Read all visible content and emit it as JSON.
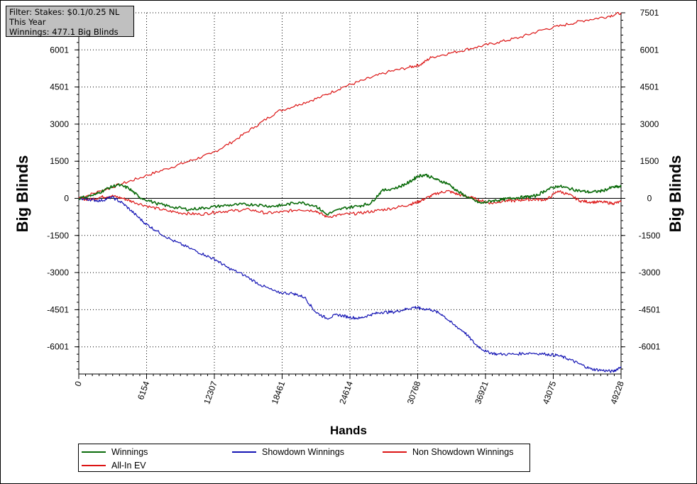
{
  "filter": {
    "line1": "Filter: Stakes: $0.1/0.25 NL",
    "line2": "This Year",
    "line3": "Winnings: 477.1 Big Blinds"
  },
  "colors": {
    "winnings": "#0a6b0a",
    "showdown": "#1414b4",
    "non_showdown": "#dc1414",
    "allin_ev": "#dc1414",
    "zero_line": "#000000",
    "grid": "#000000"
  },
  "legend": {
    "winnings": "Winnings",
    "showdown": "Showdown Winnings",
    "non_showdown": "Non Showdown Winnings",
    "allin_ev": "All-In EV"
  },
  "chart_data": {
    "type": "line",
    "xlabel": "Hands",
    "ylabel_left": "Big Blinds",
    "ylabel_right": "Big Blinds",
    "xlim": [
      0,
      49228
    ],
    "ylim": [
      -7100,
      7501
    ],
    "x_ticks": [
      "0",
      "6154",
      "12307",
      "18461",
      "24614",
      "30768",
      "36921",
      "43075",
      "49228"
    ],
    "x_tick_values": [
      0,
      6154,
      12307,
      18461,
      24614,
      30768,
      36921,
      43075,
      49228
    ],
    "y_ticks_left": [
      "6001",
      "4501",
      "3000",
      "1500",
      "0",
      "-1500",
      "-3000",
      "-4501",
      "-6001"
    ],
    "y_ticks_right": [
      "7501",
      "6001",
      "4501",
      "3000",
      "1500",
      "0",
      "-1500",
      "-3000",
      "-4501",
      "-6001"
    ],
    "y_tick_values_left": [
      6001,
      4501,
      3000,
      1500,
      0,
      -1500,
      -3000,
      -4501,
      -6001
    ],
    "y_tick_values_right": [
      7501,
      6001,
      4501,
      3000,
      1500,
      0,
      -1500,
      -3000,
      -4501,
      -6001
    ],
    "grid": true,
    "legend_position": "bottom",
    "series": [
      {
        "name": "Winnings",
        "color_key": "winnings",
        "x": [
          0,
          1500,
          2500,
          3500,
          4500,
          5500,
          7000,
          8500,
          10000,
          11500,
          13000,
          14500,
          16000,
          17500,
          18500,
          20000,
          21500,
          22500,
          24000,
          25500,
          26500,
          27500,
          29000,
          30000,
          30768,
          31500,
          32500,
          33500,
          34500,
          35500,
          36500,
          37500,
          38500,
          39500,
          40500,
          41500,
          42500,
          43500,
          44500,
          45500,
          46500,
          47500,
          48500,
          49228
        ],
        "y": [
          0,
          150,
          380,
          550,
          420,
          50,
          -200,
          -350,
          -450,
          -380,
          -300,
          -250,
          -250,
          -320,
          -280,
          -150,
          -300,
          -650,
          -400,
          -300,
          -200,
          300,
          450,
          650,
          900,
          950,
          750,
          600,
          250,
          0,
          -200,
          -100,
          -50,
          20,
          50,
          100,
          350,
          500,
          400,
          300,
          250,
          300,
          450,
          470
        ]
      },
      {
        "name": "Showdown Winnings",
        "color_key": "showdown",
        "x": [
          0,
          1000,
          2000,
          3000,
          4000,
          5000,
          6000,
          7000,
          8500,
          10000,
          11500,
          12500,
          13500,
          15000,
          16500,
          18000,
          19500,
          20500,
          21500,
          22500,
          23500,
          24500,
          25500,
          26500,
          27500,
          28500,
          29500,
          30500,
          31000,
          32000,
          33000,
          34000,
          35000,
          36000,
          37000,
          38000,
          39500,
          41000,
          42500,
          43500,
          44500,
          45500,
          46500,
          47500,
          48500,
          49228
        ],
        "y": [
          0,
          -50,
          -100,
          50,
          -200,
          -600,
          -1000,
          -1300,
          -1700,
          -2000,
          -2300,
          -2500,
          -2800,
          -3100,
          -3500,
          -3800,
          -3850,
          -4000,
          -4600,
          -4850,
          -4700,
          -4800,
          -4850,
          -4700,
          -4600,
          -4600,
          -4500,
          -4400,
          -4450,
          -4500,
          -4700,
          -5100,
          -5400,
          -5900,
          -6200,
          -6300,
          -6300,
          -6250,
          -6300,
          -6350,
          -6500,
          -6700,
          -6900,
          -6950,
          -7000,
          -6800
        ]
      },
      {
        "name": "Non Showdown Winnings",
        "color_key": "non_showdown",
        "x": [
          0,
          1000,
          2000,
          3000,
          4000,
          5000,
          6500,
          8000,
          9500,
          11000,
          12500,
          14000,
          15500,
          17000,
          18500,
          20000,
          21500,
          22500,
          24000,
          25500,
          27000,
          28500,
          30000,
          30768,
          31500,
          32500,
          33500,
          34500,
          35500,
          36500,
          37500,
          38500,
          39500,
          40500,
          41500,
          42500,
          43500,
          44500,
          45500,
          46500,
          47500,
          48500,
          49228
        ],
        "y": [
          0,
          -50,
          50,
          100,
          0,
          -150,
          -350,
          -500,
          -600,
          -650,
          -550,
          -500,
          -450,
          -600,
          -550,
          -450,
          -500,
          -750,
          -650,
          -600,
          -500,
          -400,
          -250,
          -150,
          0,
          200,
          300,
          150,
          50,
          -100,
          -200,
          -100,
          -100,
          -50,
          -50,
          -50,
          300,
          150,
          -100,
          -150,
          -150,
          -200,
          -150
        ]
      },
      {
        "name": "All-In EV",
        "color_key": "allin_ev",
        "x": [
          0,
          2000,
          4000,
          6000,
          8000,
          10000,
          12000,
          14000,
          16000,
          18000,
          20000,
          22000,
          24000,
          26000,
          28000,
          30000,
          31000,
          32000,
          34000,
          36000,
          38000,
          40000,
          42000,
          44000,
          46000,
          48000,
          49228
        ],
        "y": [
          0,
          300,
          600,
          900,
          1200,
          1500,
          1800,
          2300,
          2900,
          3500,
          3800,
          4100,
          4500,
          4800,
          5100,
          5300,
          5400,
          5700,
          5900,
          6100,
          6300,
          6500,
          6800,
          7000,
          7200,
          7350,
          7501
        ]
      }
    ]
  }
}
